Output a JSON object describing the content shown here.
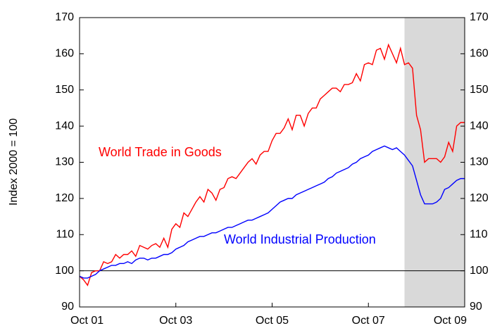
{
  "chart_data": {
    "type": "line",
    "y_label": "Index 2000 = 100",
    "categories": [
      "Oct 01",
      null,
      null,
      null,
      null,
      null,
      null,
      null,
      null,
      null,
      null,
      null,
      null,
      null,
      null,
      null,
      null,
      null,
      null,
      null,
      null,
      null,
      null,
      null,
      "Oct 03",
      null,
      null,
      null,
      null,
      null,
      null,
      null,
      null,
      null,
      null,
      null,
      null,
      null,
      null,
      null,
      null,
      null,
      null,
      null,
      null,
      null,
      null,
      null,
      "Oct 05",
      null,
      null,
      null,
      null,
      null,
      null,
      null,
      null,
      null,
      null,
      null,
      null,
      null,
      null,
      null,
      null,
      null,
      null,
      null,
      null,
      null,
      null,
      null,
      "Oct 07",
      null,
      null,
      null,
      null,
      null,
      null,
      null,
      null,
      null,
      null,
      null,
      null,
      null,
      null,
      null,
      null,
      null,
      null,
      null,
      null,
      null,
      null,
      null,
      "Oct 09"
    ],
    "series": [
      {
        "name": "World Trade in Goods",
        "color": "#ff0000",
        "values": [
          98.5,
          97.5,
          96,
          99.5,
          100,
          100,
          102.5,
          102,
          102.5,
          104.5,
          103.5,
          104.5,
          104.5,
          105.5,
          104,
          107,
          106.5,
          106,
          107,
          107.5,
          106.5,
          109,
          106.5,
          111.5,
          113,
          112,
          116,
          115,
          117,
          119,
          120.5,
          119,
          122.5,
          121.5,
          119.5,
          122.5,
          123,
          125.5,
          126,
          125.5,
          127,
          128.5,
          130,
          131,
          129.5,
          132,
          133,
          133,
          136,
          138,
          138,
          139.5,
          142,
          139,
          143,
          143,
          140,
          143.5,
          145,
          145,
          147.5,
          148.5,
          149.5,
          150.5,
          150.5,
          149.5,
          151.5,
          151.5,
          152,
          154.5,
          152.5,
          157,
          157.5,
          157,
          161,
          161.5,
          158.5,
          162.5,
          160,
          157.5,
          161.5,
          157,
          157.5,
          156,
          143,
          139,
          130,
          131,
          131,
          131,
          130,
          131.5,
          135.5,
          133,
          140,
          141,
          141
        ]
      },
      {
        "name": "World Industrial Production",
        "color": "#0000ff",
        "values": [
          98.5,
          98,
          98,
          98.5,
          99,
          100,
          100.5,
          101,
          101.5,
          101.5,
          102,
          102,
          102.5,
          102,
          103,
          103.5,
          103.5,
          103,
          103.5,
          103.5,
          104,
          104.5,
          104.5,
          105,
          106,
          106.5,
          107,
          108,
          108.5,
          109,
          109.5,
          109.5,
          110,
          110.5,
          110.5,
          111,
          111.5,
          112,
          112,
          112.5,
          113,
          113.5,
          114,
          114,
          114.5,
          115,
          115.5,
          116,
          117,
          118,
          119,
          119.5,
          120,
          120,
          121,
          121.5,
          122,
          122.5,
          123,
          123.5,
          124,
          124.5,
          125.5,
          126,
          127,
          127.5,
          128,
          128.5,
          129.5,
          130,
          131,
          131.5,
          132,
          133,
          133.5,
          134,
          134.5,
          134,
          133.5,
          134,
          133,
          132,
          130.5,
          129,
          125,
          121,
          118.5,
          118.5,
          118.5,
          119,
          120,
          122.5,
          123,
          124,
          125,
          125.5,
          125.5
        ]
      }
    ],
    "ylim": [
      90,
      170
    ],
    "yticks": [
      90,
      100,
      110,
      120,
      130,
      140,
      150,
      160,
      170
    ],
    "reference_line": 100,
    "shade_from_index": 81,
    "grid": false
  }
}
